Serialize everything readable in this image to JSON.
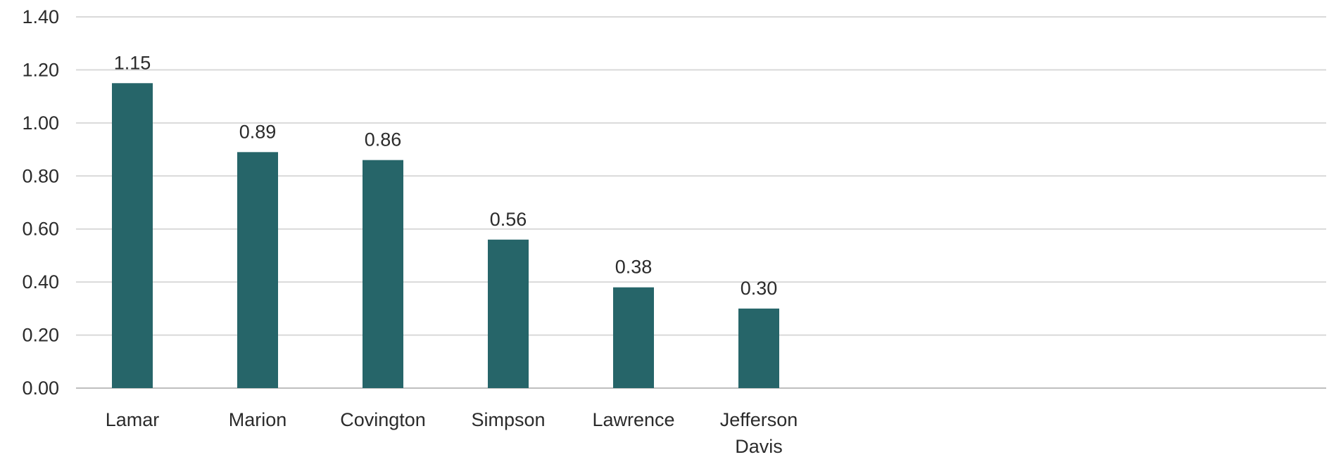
{
  "chart_data": {
    "type": "bar",
    "title": "",
    "xlabel": "",
    "ylabel": "",
    "categories": [
      [
        "Lamar"
      ],
      [
        "Marion"
      ],
      [
        "Covington"
      ],
      [
        "Simpson"
      ],
      [
        "Lawrence"
      ],
      [
        "Jefferson",
        "Davis"
      ]
    ],
    "values": [
      1.15,
      0.89,
      0.86,
      0.56,
      0.38,
      0.3
    ],
    "data_labels": [
      "1.15",
      "0.89",
      "0.86",
      "0.56",
      "0.38",
      "0.30"
    ],
    "ylim": [
      0,
      1.4
    ],
    "yticks": [
      0,
      0.2,
      0.4,
      0.6,
      0.8,
      1.0,
      1.2,
      1.4
    ],
    "ytick_labels": [
      "0.00",
      "0.20",
      "0.40",
      "0.60",
      "0.80",
      "1.00",
      "1.20",
      "1.40"
    ],
    "grid": true,
    "legend": "none",
    "bar_color": "#266569"
  }
}
